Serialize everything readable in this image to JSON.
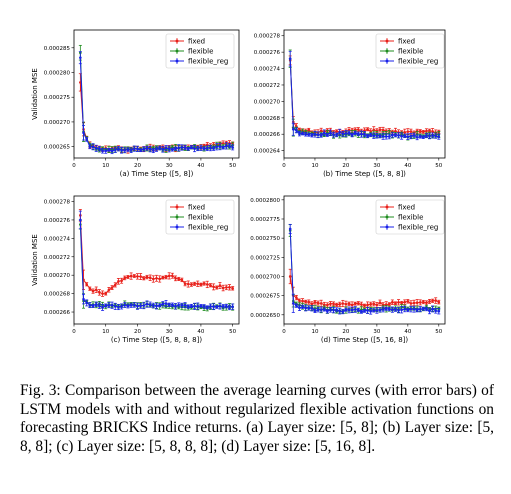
{
  "caption": "Fig. 3: Comparison between the average learning curves (with error bars) of LSTM models with and without regularized flexible activation functions on forecasting BRICKS Indice returns. (a) Layer size: [5, 8]; (b) Layer size: [5, 8, 8]; (c) Layer size: [5, 8, 8, 8]; (d) Layer size: [5, 16, 8].",
  "colors": {
    "fixed": "#e8201a",
    "flexible": "#1f8c1f",
    "flexible_reg": "#1a22e8"
  },
  "chart_data": [
    {
      "type": "line",
      "xlabel": "(a) Time Step ([5, 8])",
      "ylabel": "Validation MSE",
      "xlim": [
        0,
        52
      ],
      "ylim": [
        0.0002627,
        0.0002886
      ],
      "xticks": [
        0,
        10,
        20,
        30,
        40,
        50
      ],
      "yticks": [
        "0.000265",
        "0.000270",
        "0.000275",
        "0.000280",
        "0.000285"
      ],
      "ytick_values": [
        0.000265,
        0.00027,
        0.000275,
        0.00028,
        0.000285
      ],
      "legend": [
        "fixed",
        "flexible",
        "flexible_reg"
      ],
      "series": [
        {
          "name": "fixed",
          "x": [
            2,
            3,
            5,
            8,
            12,
            20,
            30,
            40,
            50
          ],
          "values": [
            0.000278,
            0.0002685,
            0.0002652,
            0.0002646,
            0.0002645,
            0.0002646,
            0.0002648,
            0.000265,
            0.0002658
          ]
        },
        {
          "name": "flexible",
          "x": [
            2,
            3,
            5,
            8,
            12,
            20,
            30,
            40,
            50
          ],
          "values": [
            0.000284,
            0.000268,
            0.0002653,
            0.0002645,
            0.0002644,
            0.0002645,
            0.0002646,
            0.0002648,
            0.0002652
          ]
        },
        {
          "name": "flexible_reg",
          "x": [
            2,
            3,
            5,
            8,
            12,
            20,
            30,
            40,
            50
          ],
          "values": [
            0.000283,
            0.0002678,
            0.000265,
            0.0002644,
            0.0002643,
            0.0002644,
            0.0002645,
            0.0002647,
            0.000265
          ]
        }
      ]
    },
    {
      "type": "line",
      "xlabel": "(b) Time Step ([5, 8, 8])",
      "ylabel": "",
      "xlim": [
        0,
        52
      ],
      "ylim": [
        0.0002631,
        0.0002787
      ],
      "xticks": [
        0,
        10,
        20,
        30,
        40,
        50
      ],
      "yticks": [
        "0.000264",
        "0.000266",
        "0.000268",
        "0.000270",
        "0.000272",
        "0.000274",
        "0.000276",
        "0.000278"
      ],
      "ytick_values": [
        0.000264,
        0.000266,
        0.000268,
        0.00027,
        0.000272,
        0.000274,
        0.000276,
        0.000278
      ],
      "legend": [
        "fixed",
        "flexible",
        "flexible_reg"
      ],
      "series": [
        {
          "name": "fixed",
          "x": [
            2,
            3,
            5,
            10,
            20,
            30,
            40,
            50
          ],
          "values": [
            0.000275,
            0.0002675,
            0.0002665,
            0.0002663,
            0.0002664,
            0.0002665,
            0.0002662,
            0.0002663
          ]
        },
        {
          "name": "flexible",
          "x": [
            2,
            3,
            5,
            10,
            20,
            30,
            40,
            50
          ],
          "values": [
            0.0002752,
            0.0002668,
            0.0002662,
            0.000266,
            0.000266,
            0.000266,
            0.0002658,
            0.0002658
          ]
        },
        {
          "name": "flexible_reg",
          "x": [
            2,
            3,
            5,
            10,
            20,
            30,
            40,
            50
          ],
          "values": [
            0.0002752,
            0.0002666,
            0.0002661,
            0.000266,
            0.0002661,
            0.0002658,
            0.0002658,
            0.0002657
          ]
        }
      ]
    },
    {
      "type": "line",
      "xlabel": "(c) Time Step ([5, 8, 8, 8])",
      "ylabel": "Validation MSE",
      "xlim": [
        0,
        52
      ],
      "ylim": [
        0.0002647,
        0.0002786
      ],
      "xticks": [
        0,
        10,
        20,
        30,
        40,
        50
      ],
      "yticks": [
        "0.000266",
        "0.000268",
        "0.000270",
        "0.000272",
        "0.000274",
        "0.000276",
        "0.000278"
      ],
      "ytick_values": [
        0.000266,
        0.000268,
        0.00027,
        0.000272,
        0.000274,
        0.000276,
        0.000278
      ],
      "legend": [
        "fixed",
        "flexible",
        "flexible_reg"
      ],
      "series": [
        {
          "name": "fixed",
          "x": [
            2,
            3,
            5,
            10,
            15,
            20,
            25,
            30,
            35,
            40,
            45,
            50
          ],
          "values": [
            0.0002765,
            0.0002695,
            0.0002685,
            0.000268,
            0.0002695,
            0.00027,
            0.0002695,
            0.00027,
            0.0002692,
            0.000269,
            0.0002688,
            0.0002685
          ]
        },
        {
          "name": "flexible",
          "x": [
            2,
            3,
            5,
            10,
            20,
            30,
            40,
            50
          ],
          "values": [
            0.0002755,
            0.0002672,
            0.0002668,
            0.0002667,
            0.0002668,
            0.0002667,
            0.0002665,
            0.0002666
          ]
        },
        {
          "name": "flexible_reg",
          "x": [
            2,
            3,
            5,
            10,
            20,
            30,
            40,
            50
          ],
          "values": [
            0.000276,
            0.0002674,
            0.0002668,
            0.0002666,
            0.0002667,
            0.0002668,
            0.0002666,
            0.0002665
          ]
        }
      ]
    },
    {
      "type": "line",
      "xlabel": "(d) Time Step ([5, 16, 8])",
      "ylabel": "",
      "xlim": [
        0,
        52
      ],
      "ylim": [
        0.0002638,
        0.0002805
      ],
      "xticks": [
        0,
        10,
        20,
        30,
        40,
        50
      ],
      "yticks": [
        "0.0002650",
        "0.0002675",
        "0.0002700",
        "0.0002725",
        "0.0002750",
        "0.0002775",
        "0.0002800"
      ],
      "ytick_values": [
        0.000265,
        0.0002675,
        0.00027,
        0.0002725,
        0.000275,
        0.0002775,
        0.00028
      ],
      "legend": [
        "fixed",
        "flexible",
        "flexible_reg"
      ],
      "series": [
        {
          "name": "fixed",
          "x": [
            2,
            3,
            5,
            10,
            20,
            30,
            40,
            50
          ],
          "values": [
            0.00027,
            0.0002675,
            0.0002668,
            0.0002665,
            0.0002663,
            0.0002664,
            0.0002666,
            0.0002668
          ]
        },
        {
          "name": "flexible",
          "x": [
            2,
            3,
            5,
            10,
            20,
            30,
            40,
            50
          ],
          "values": [
            0.000276,
            0.0002668,
            0.0002663,
            0.0002658,
            0.0002655,
            0.0002657,
            0.0002659,
            0.0002658
          ]
        },
        {
          "name": "flexible_reg",
          "x": [
            2,
            3,
            5,
            10,
            20,
            30,
            40,
            50
          ],
          "values": [
            0.0002762,
            0.0002665,
            0.000266,
            0.0002656,
            0.0002655,
            0.0002656,
            0.0002657,
            0.0002656
          ]
        }
      ]
    }
  ]
}
